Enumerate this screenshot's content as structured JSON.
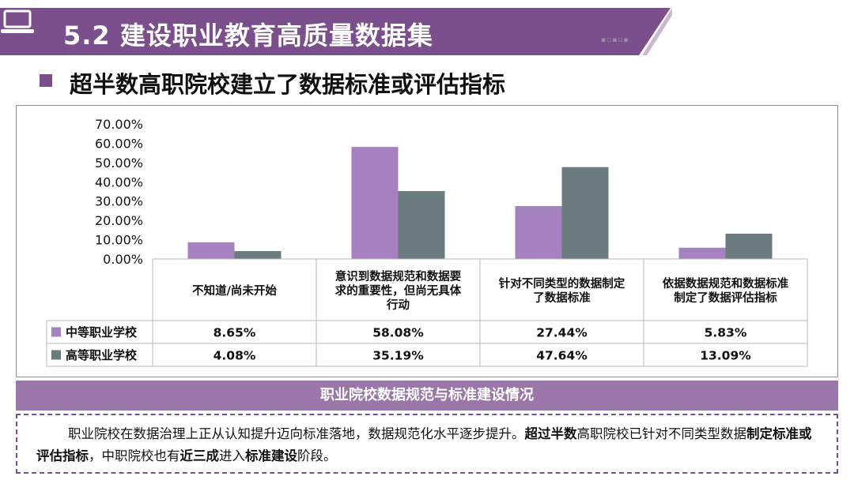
{
  "header": {
    "title": "5.2 建设职业教育高质量数据集",
    "icon": "laptop-icon",
    "banner_color": "#7b4f8c"
  },
  "subtitle": "超半数高职院校建立了数据标准或评估指标",
  "chart_data": {
    "type": "bar",
    "categories": [
      "不知道/尚未开始",
      "意识到数据规范和数据要求的重要性，但尚无具体行动",
      "针对不同类型的数据制定了数据标准",
      "依据数据规范和数据标准制定了数据评估指标"
    ],
    "category_lines": [
      [
        "不知道/尚未开始"
      ],
      [
        "意识到数据规范和数据要",
        "求的重要性，但尚无具体",
        "行动"
      ],
      [
        "针对不同类型的数据制定",
        "了数据标准"
      ],
      [
        "依据数据规范和数据标准",
        "制定了数据评估指标"
      ]
    ],
    "series": [
      {
        "name": "中等职业学校",
        "values": [
          8.65,
          58.08,
          27.44,
          5.83
        ],
        "labels": [
          "8.65%",
          "58.08%",
          "27.44%",
          "5.83%"
        ],
        "color": "#a581c0"
      },
      {
        "name": "高等职业学校",
        "values": [
          4.08,
          35.19,
          47.64,
          13.09
        ],
        "labels": [
          "4.08%",
          "35.19%",
          "47.64%",
          "13.09%"
        ],
        "color": "#6b7b7e"
      }
    ],
    "yticks": [
      "0.00%",
      "10.00%",
      "20.00%",
      "30.00%",
      "40.00%",
      "50.00%",
      "60.00%",
      "70.00%"
    ],
    "ylim": [
      0,
      70
    ],
    "grid": false,
    "legend": "data-table"
  },
  "caption": "职业院校数据规范与标准建设情况",
  "summary": {
    "parts": [
      {
        "text": "职业院校在数据治理上正从认知提升迈向标准落地，数据规范化水平逐步提升。",
        "bold": false
      },
      {
        "text": "超过半数",
        "bold": true
      },
      {
        "text": "高职院校已针对不同类型数据",
        "bold": false
      },
      {
        "text": "制定标准或评估指标",
        "bold": true
      },
      {
        "text": "，中职院校也有",
        "bold": false
      },
      {
        "text": "近三成",
        "bold": true
      },
      {
        "text": "进入",
        "bold": false
      },
      {
        "text": "标准建设",
        "bold": true
      },
      {
        "text": "阶段。",
        "bold": false
      }
    ]
  }
}
